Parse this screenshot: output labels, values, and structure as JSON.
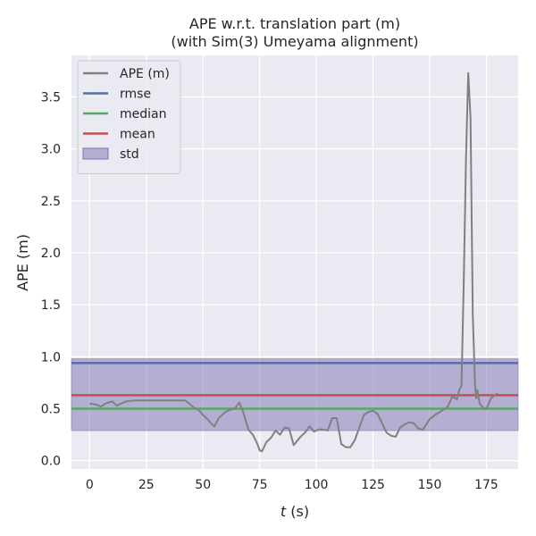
{
  "chart_data": {
    "type": "line",
    "title": "APE w.r.t. translation part (m)",
    "subtitle": "(with Sim(3) Umeyama alignment)",
    "xlabel_var": "t",
    "xlabel_unit": " (s)",
    "ylabel": "APE (m)",
    "xlim": [
      -8,
      189
    ],
    "ylim": [
      -0.08,
      3.9
    ],
    "xticks": [
      0,
      25,
      50,
      75,
      100,
      125,
      150,
      175
    ],
    "xtick_labels": [
      "0",
      "25",
      "50",
      "75",
      "100",
      "125",
      "150",
      "175"
    ],
    "yticks": [
      0.0,
      0.5,
      1.0,
      1.5,
      2.0,
      2.5,
      3.0,
      3.5
    ],
    "ytick_labels": [
      "0.0",
      "0.5",
      "1.0",
      "1.5",
      "2.0",
      "2.5",
      "3.0",
      "3.5"
    ],
    "grid": true,
    "legend_position": "top-left",
    "legend": [
      {
        "label": "APE (m)",
        "color": "#808080",
        "kind": "line"
      },
      {
        "label": "rmse",
        "color": "#4c72b0",
        "kind": "line"
      },
      {
        "label": "median",
        "color": "#55a868",
        "kind": "line"
      },
      {
        "label": "mean",
        "color": "#c44e52",
        "kind": "line"
      },
      {
        "label": "std",
        "color": "#8172b2",
        "kind": "patch"
      }
    ],
    "stats": {
      "rmse": 0.94,
      "median": 0.5,
      "mean": 0.63,
      "std_lower": 0.29,
      "std_upper": 0.98
    },
    "series": [
      {
        "name": "APE (m)",
        "color": "#808080",
        "x": [
          0,
          3,
          5,
          7,
          10,
          12,
          14,
          16,
          20,
          25,
          30,
          35,
          40,
          42,
          44,
          46,
          48,
          50,
          52,
          54,
          55,
          57,
          60,
          62,
          64,
          65,
          66,
          67,
          68,
          70,
          72,
          74,
          75,
          76,
          78,
          80,
          82,
          84,
          86,
          88,
          90,
          93,
          95,
          97,
          99,
          101,
          103,
          105,
          107,
          109,
          111,
          113,
          115,
          117,
          119,
          121,
          123,
          125,
          127,
          129,
          131,
          133,
          135,
          137,
          139,
          141,
          143,
          145,
          147,
          150,
          153,
          156,
          158,
          159,
          160,
          162,
          163,
          164,
          165,
          166,
          167,
          168,
          169,
          170,
          170.5,
          171,
          172,
          174,
          175,
          177,
          180
        ],
        "y": [
          0.55,
          0.54,
          0.52,
          0.55,
          0.57,
          0.53,
          0.55,
          0.57,
          0.58,
          0.58,
          0.58,
          0.58,
          0.58,
          0.58,
          0.55,
          0.51,
          0.49,
          0.44,
          0.4,
          0.35,
          0.33,
          0.41,
          0.47,
          0.49,
          0.5,
          0.53,
          0.56,
          0.51,
          0.45,
          0.3,
          0.25,
          0.16,
          0.1,
          0.09,
          0.18,
          0.22,
          0.29,
          0.25,
          0.32,
          0.31,
          0.15,
          0.23,
          0.27,
          0.33,
          0.28,
          0.3,
          0.3,
          0.29,
          0.41,
          0.41,
          0.16,
          0.13,
          0.13,
          0.2,
          0.32,
          0.44,
          0.47,
          0.48,
          0.45,
          0.36,
          0.27,
          0.24,
          0.23,
          0.32,
          0.35,
          0.37,
          0.36,
          0.31,
          0.3,
          0.4,
          0.45,
          0.49,
          0.52,
          0.57,
          0.62,
          0.59,
          0.68,
          0.72,
          1.7,
          2.9,
          3.73,
          3.3,
          1.4,
          0.72,
          0.6,
          0.68,
          0.55,
          0.5,
          0.5,
          0.6,
          0.65
        ]
      }
    ]
  }
}
